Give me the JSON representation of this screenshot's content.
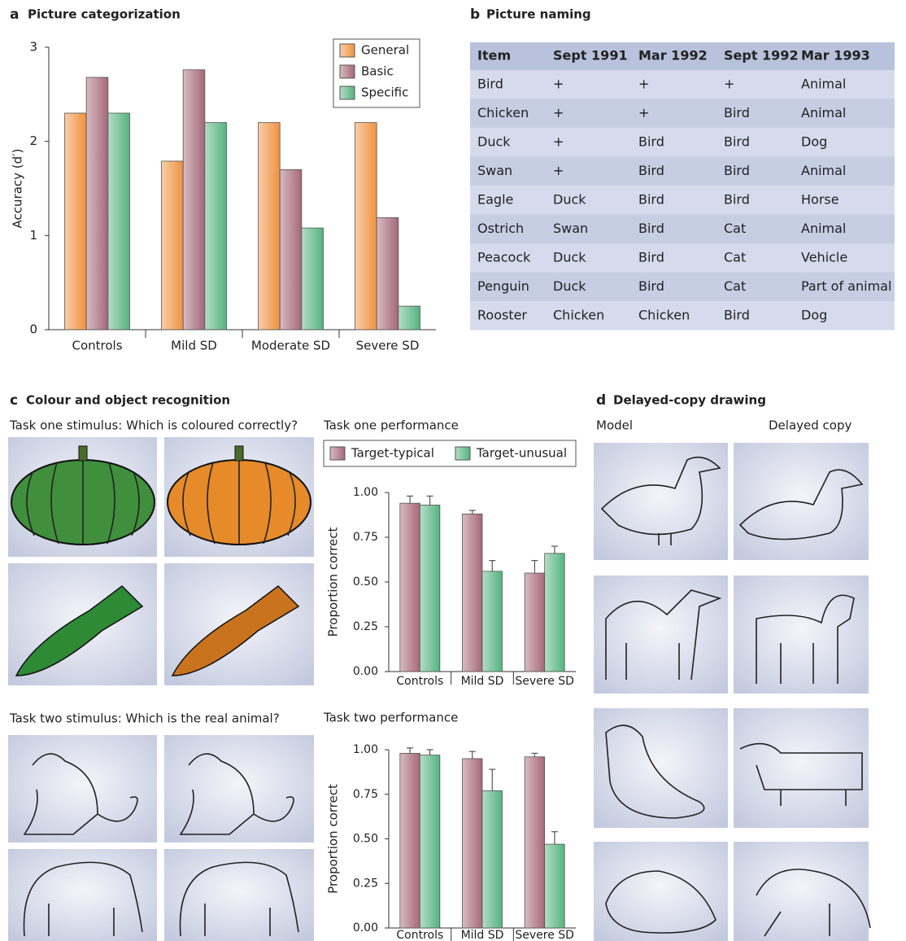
{
  "chart_data": [
    {
      "type": "bar",
      "panel": "a",
      "title": "Picture categorization",
      "ylabel": "Accuracy (d′)",
      "categories": [
        "Controls",
        "Mild SD",
        "Moderate SD",
        "Severe SD"
      ],
      "series": [
        {
          "name": "General",
          "color": "#f0923f",
          "values": [
            2.3,
            1.79,
            2.2,
            2.2
          ]
        },
        {
          "name": "Basic",
          "color": "#a5687a",
          "values": [
            2.68,
            2.76,
            1.7,
            1.19
          ]
        },
        {
          "name": "Specific",
          "color": "#55b380",
          "values": [
            2.3,
            2.2,
            1.08,
            0.25
          ]
        }
      ],
      "ylim": [
        0,
        3
      ],
      "yticks": [
        0,
        1,
        2,
        3
      ],
      "legend": "upper right"
    },
    {
      "type": "bar",
      "title": "Task one performance",
      "ylabel": "Proportion correct",
      "categories": [
        "Controls",
        "Mild SD",
        "Severe SD"
      ],
      "series": [
        {
          "name": "Target-typical",
          "color": "#a5687a",
          "values": [
            0.94,
            0.88,
            0.55
          ],
          "errors": [
            0.04,
            0.02,
            0.07
          ]
        },
        {
          "name": "Target-unusual",
          "color": "#55b380",
          "values": [
            0.93,
            0.56,
            0.66
          ],
          "errors": [
            0.05,
            0.06,
            0.04
          ]
        }
      ],
      "ylim": [
        0,
        1
      ],
      "yticks": [
        {
          "value": 0,
          "label": "0.00"
        },
        {
          "value": 0.25,
          "label": "0.25"
        },
        {
          "value": 0.5,
          "label": "0.50"
        },
        {
          "value": 0.75,
          "label": "0.75"
        },
        {
          "value": 1,
          "label": "1.00"
        }
      ],
      "legend": "top"
    },
    {
      "type": "bar",
      "title": "Task two performance",
      "ylabel": "Proportion correct",
      "categories": [
        "Controls",
        "Mild SD",
        "Severe SD"
      ],
      "series": [
        {
          "color": "#a5687a",
          "values": [
            0.98,
            0.95,
            0.96
          ],
          "errors": [
            0.03,
            0.04,
            0.02
          ]
        },
        {
          "color": "#55b380",
          "values": [
            0.97,
            0.77,
            0.47
          ],
          "errors": [
            0.03,
            0.12,
            0.07
          ]
        }
      ],
      "ylim": [
        0,
        1
      ],
      "yticks": [
        {
          "value": 0,
          "label": "0.00"
        },
        {
          "value": 0.25,
          "label": "0.25"
        },
        {
          "value": 0.5,
          "label": "0.50"
        },
        {
          "value": 0.75,
          "label": "0.75"
        },
        {
          "value": 1,
          "label": "1.00"
        }
      ]
    }
  ],
  "table": {
    "letter": "b",
    "title": "Picture naming",
    "header": [
      "Item",
      "Sept 1991",
      "Mar 1992",
      "Sept 1992",
      "Mar 1993"
    ],
    "rows": [
      [
        "Bird",
        "+",
        "+",
        "+",
        "Animal"
      ],
      [
        "Chicken",
        "+",
        "+",
        "Bird",
        "Animal"
      ],
      [
        "Duck",
        "+",
        "Bird",
        "Bird",
        "Dog"
      ],
      [
        "Swan",
        "+",
        "Bird",
        "Bird",
        "Animal"
      ],
      [
        "Eagle",
        "Duck",
        "Bird",
        "Bird",
        "Horse"
      ],
      [
        "Ostrich",
        "Swan",
        "Bird",
        "Cat",
        "Animal"
      ],
      [
        "Peacock",
        "Duck",
        "Bird",
        "Cat",
        "Vehicle"
      ],
      [
        "Penguin",
        "Duck",
        "Bird",
        "Cat",
        "Part of animal"
      ],
      [
        "Rooster",
        "Chicken",
        "Chicken",
        "Bird",
        "Dog"
      ]
    ]
  },
  "panel_c": {
    "letter": "c",
    "title": "Colour and object recognition",
    "stimulus_one": "Task one stimulus: Which is coloured correctly?",
    "stimulus_two": "Task two stimulus: Which is the real animal?"
  },
  "panel_d": {
    "letter": "d",
    "title": "Delayed-copy drawing",
    "columns": [
      "Model",
      "Delayed copy"
    ]
  }
}
